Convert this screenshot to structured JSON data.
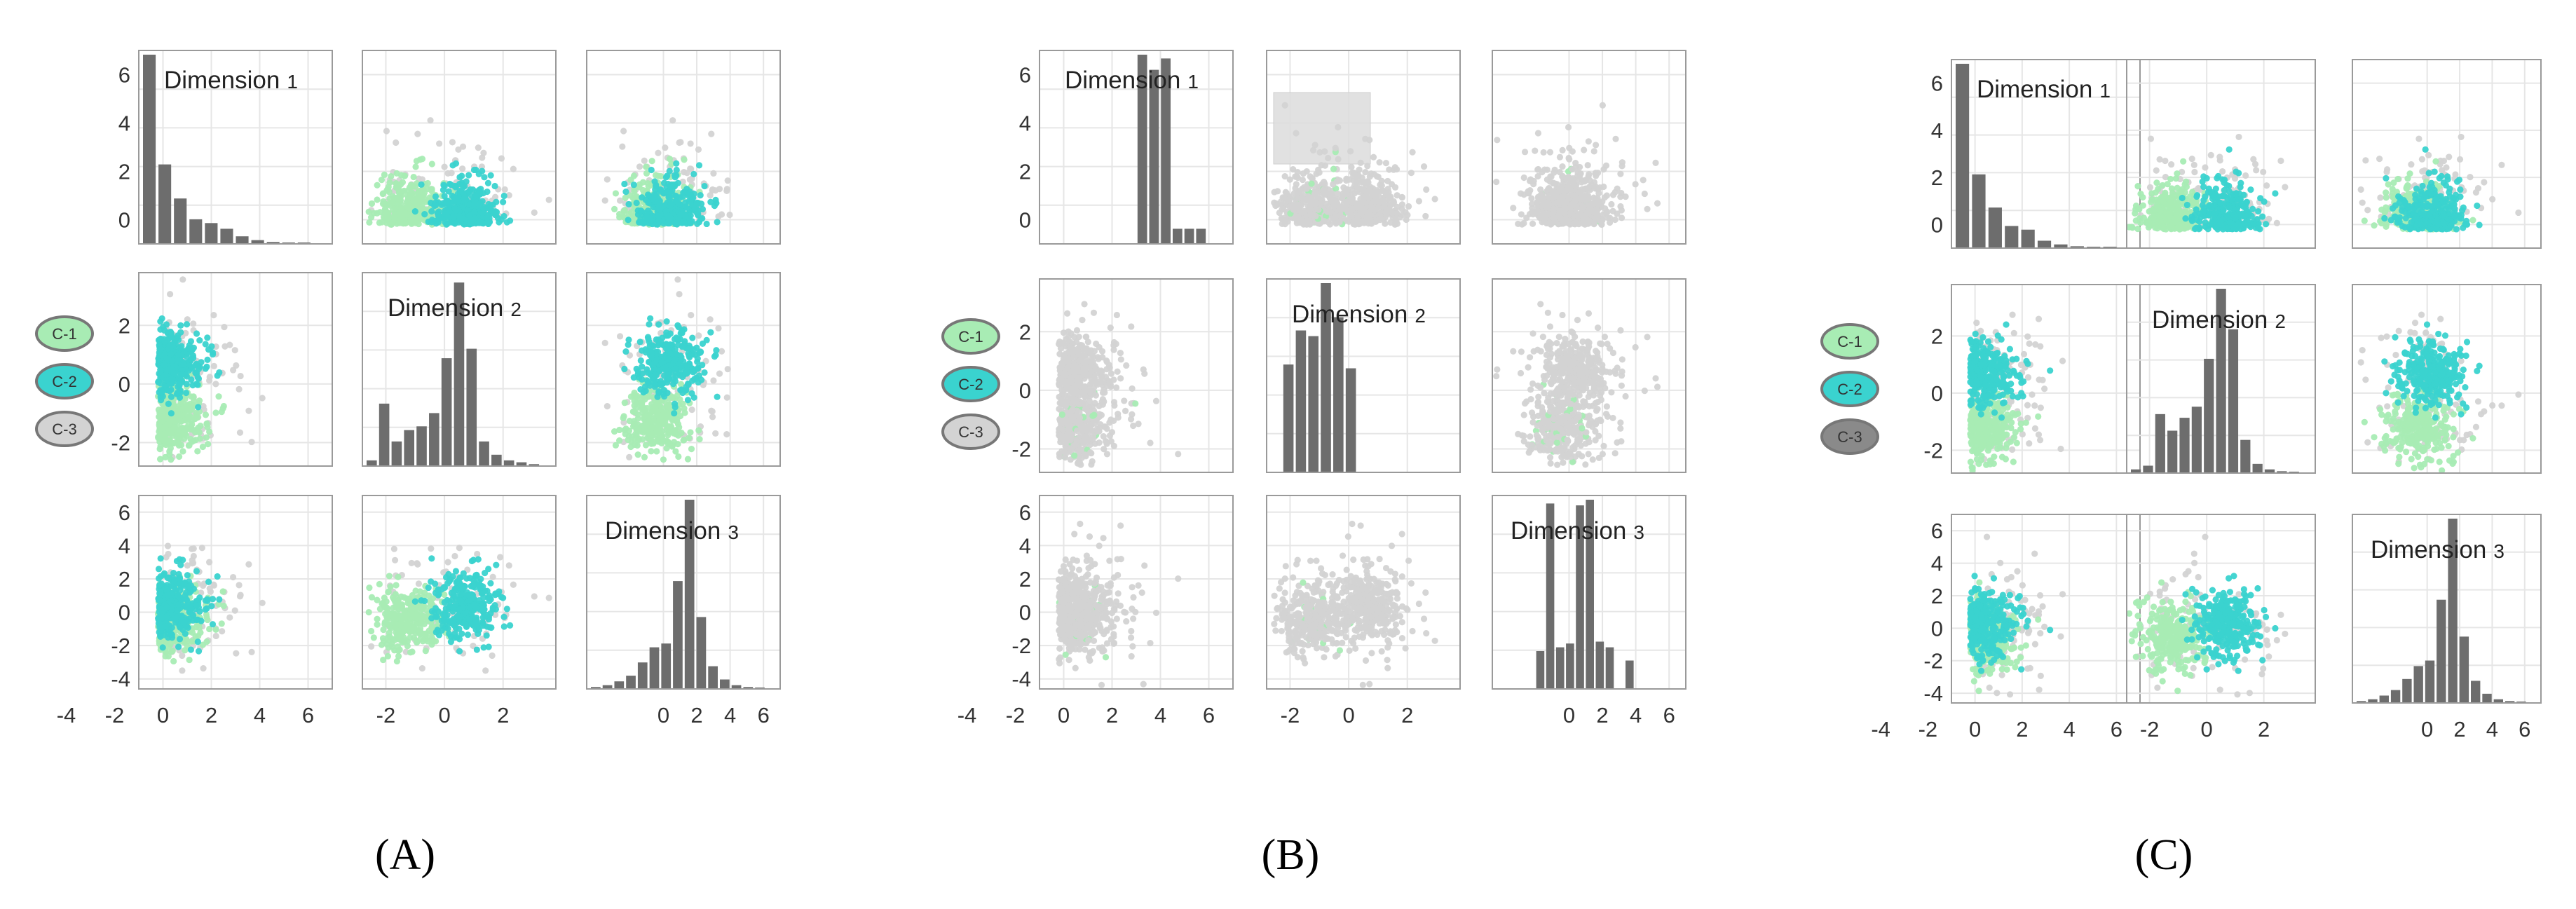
{
  "colors": {
    "c1": "#a8ecb4",
    "c2": "#3ad3cf",
    "c3": "#d3d3d3",
    "c3_dark": "#8a8a8a",
    "bar": "#6d6d6d",
    "grid": "#e6e6e6",
    "frame": "#9a9a9a"
  },
  "legend": {
    "items": [
      "C-1",
      "C-2",
      "C-3"
    ]
  },
  "chart_data": [
    {
      "type": "scatter-matrix",
      "panel_label": "(A)",
      "variables": [
        "Dimension 1",
        "Dimension 2",
        "Dimension 3"
      ],
      "diag_titles": [
        {
          "label": "Dimension",
          "num": "1"
        },
        {
          "label": "Dimension",
          "num": "2"
        },
        {
          "label": "Dimension",
          "num": "3"
        }
      ],
      "axis_ranges": [
        [
          -1,
          7
        ],
        [
          -2.8,
          3.8
        ],
        [
          -4.6,
          7
        ]
      ],
      "yticks": [
        [
          0,
          2,
          4,
          6
        ],
        [
          -2,
          0,
          2
        ],
        [
          -4,
          -2,
          0,
          2,
          4,
          6
        ]
      ],
      "xticks": [
        [
          -4,
          -2,
          0,
          2,
          4,
          6
        ],
        [
          -2,
          0,
          2
        ],
        [
          0,
          2,
          4,
          6
        ]
      ],
      "x_tick_labels": [
        [
          "-4",
          "-2",
          "0",
          "2",
          "4",
          "6"
        ],
        [
          "-2",
          "0",
          "2"
        ],
        [
          "0",
          "2",
          "4",
          "6"
        ]
      ],
      "hist": [
        {
          "range": [
            -1,
            7
          ],
          "values": [
            100,
            42,
            24,
            13,
            11,
            8,
            4,
            2,
            1,
            0.5,
            0.3
          ]
        },
        {
          "range": [
            -2.8,
            3.8
          ],
          "values": [
            3,
            33,
            13,
            19,
            21,
            28,
            57,
            97,
            62,
            13,
            6,
            3,
            2,
            1
          ]
        },
        {
          "range": [
            -4.6,
            7
          ],
          "values": [
            1,
            2,
            4,
            7,
            14,
            22,
            24,
            57,
            100,
            38,
            12,
            5,
            2,
            1,
            0.5
          ]
        }
      ],
      "legend_state": [
        "light",
        "light",
        "light"
      ],
      "brush": null
    },
    {
      "type": "scatter-matrix",
      "panel_label": "(B)",
      "variables": [
        "Dimension 1",
        "Dimension 2",
        "Dimension 3"
      ],
      "diag_titles": [
        {
          "label": "Dimension",
          "num": "1"
        },
        {
          "label": "Dimension",
          "num": "2"
        },
        {
          "label": "Dimension",
          "num": "3"
        }
      ],
      "axis_ranges": [
        [
          -1,
          7
        ],
        [
          -2.8,
          3.8
        ],
        [
          -4.6,
          7
        ]
      ],
      "yticks": [
        [
          0,
          2,
          4,
          6
        ],
        [
          -2,
          0,
          2
        ],
        [
          -4,
          -2,
          0,
          2,
          4,
          6
        ]
      ],
      "xticks": [
        [
          -4,
          -2,
          0,
          2,
          4,
          6
        ],
        [
          -2,
          0,
          2
        ],
        [
          0,
          2,
          4,
          6
        ]
      ],
      "x_tick_labels": [
        [
          "-4",
          "-2",
          "0",
          "2",
          "4",
          "6"
        ],
        [
          "-2",
          "0",
          "2"
        ],
        [
          "0",
          "2",
          "4",
          "6"
        ]
      ],
      "hist": [
        {
          "range": [
            -1,
            7
          ],
          "values": [
            0,
            0,
            0,
            0,
            0,
            0,
            0,
            0,
            100,
            92,
            98,
            8,
            8,
            8,
            0
          ]
        },
        {
          "range": [
            -2.8,
            3.8
          ],
          "values": [
            0,
            57,
            75,
            72,
            100,
            82,
            55,
            0,
            0,
            0,
            0,
            0,
            0,
            0
          ]
        },
        {
          "range": [
            -4.6,
            7
          ],
          "values": [
            0,
            0,
            0,
            0,
            20,
            98,
            22,
            24,
            97,
            100,
            25,
            22,
            0,
            15,
            0,
            0,
            0,
            0
          ]
        }
      ],
      "legend_state": [
        "light",
        "light",
        "light"
      ],
      "brush": {
        "x": [
          -2.5,
          0.6
        ],
        "y": [
          2.5,
          5.3
        ]
      }
    },
    {
      "type": "scatter-matrix",
      "panel_label": "(C)",
      "variables": [
        "Dimension 1",
        "Dimension 2",
        "Dimension 3"
      ],
      "diag_titles": [
        {
          "label": "Dimension",
          "num": "1"
        },
        {
          "label": "Dimension",
          "num": "2"
        },
        {
          "label": "Dimension",
          "num": "3"
        }
      ],
      "axis_ranges": [
        [
          -1,
          7
        ],
        [
          -2.8,
          3.8
        ],
        [
          -4.6,
          7
        ]
      ],
      "yticks": [
        [
          0,
          2,
          4,
          6
        ],
        [
          -2,
          0,
          2
        ],
        [
          -4,
          -2,
          0,
          2,
          4,
          6
        ]
      ],
      "xticks": [
        [
          -4,
          -2,
          0,
          2,
          4,
          6
        ],
        [
          -2,
          0,
          2
        ],
        [
          0,
          2,
          4,
          6
        ]
      ],
      "x_tick_labels": [
        [
          "-4",
          "-2",
          "0",
          "2",
          "4",
          "6"
        ],
        [
          "-2",
          "0",
          "2"
        ],
        [
          "0",
          "2",
          "4",
          "6"
        ]
      ],
      "hist": [
        {
          "range": [
            -1,
            7
          ],
          "values": [
            100,
            40,
            22,
            12,
            10,
            4,
            2,
            1,
            0.5,
            0.3
          ]
        },
        {
          "range": [
            -2.8,
            3.8
          ],
          "values": [
            2,
            4,
            32,
            23,
            30,
            36,
            62,
            100,
            78,
            18,
            5,
            2,
            1,
            0.5
          ]
        },
        {
          "range": [
            -4.6,
            7
          ],
          "values": [
            1,
            2,
            4,
            7,
            13,
            20,
            23,
            56,
            100,
            36,
            12,
            5,
            2,
            1,
            0.5
          ]
        }
      ],
      "legend_state": [
        "light",
        "light",
        "dark"
      ],
      "brush": null
    }
  ]
}
